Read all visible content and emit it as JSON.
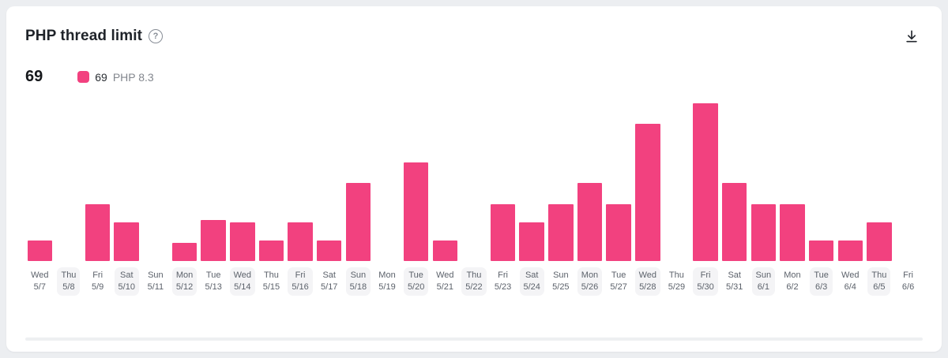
{
  "card": {
    "title": "PHP thread limit",
    "current_value": "69",
    "legend": {
      "value": "69",
      "series_label": "PHP 8.3",
      "color": "#f2417f"
    }
  },
  "icons": {
    "help": "question-mark-circle",
    "download": "download-arrow"
  },
  "chart_data": {
    "type": "bar",
    "title": "PHP thread limit",
    "series_name": "PHP 8.3",
    "bar_color": "#f2417f",
    "ylim": [
      0,
      69
    ],
    "grid": false,
    "weekdays": [
      "Wed",
      "Thu",
      "Fri",
      "Sat",
      "Sun",
      "Mon",
      "Tue",
      "Wed",
      "Thu",
      "Fri",
      "Sat",
      "Sun",
      "Mon",
      "Tue",
      "Wed",
      "Thu",
      "Fri",
      "Sat",
      "Sun",
      "Mon",
      "Tue",
      "Wed",
      "Thu",
      "Fri",
      "Sat",
      "Sun",
      "Mon",
      "Tue",
      "Wed",
      "Thu",
      "Fri"
    ],
    "categories": [
      "5/7",
      "5/8",
      "5/9",
      "5/10",
      "5/11",
      "5/12",
      "5/13",
      "5/14",
      "5/15",
      "5/16",
      "5/17",
      "5/18",
      "5/19",
      "5/20",
      "5/21",
      "5/22",
      "5/23",
      "5/24",
      "5/25",
      "5/26",
      "5/27",
      "5/28",
      "5/29",
      "5/30",
      "5/31",
      "6/1",
      "6/2",
      "6/3",
      "6/4",
      "6/5",
      "6/6"
    ],
    "values": [
      9,
      0,
      25,
      17,
      0,
      8,
      18,
      17,
      9,
      17,
      9,
      34,
      0,
      43,
      9,
      0,
      25,
      17,
      25,
      34,
      25,
      60,
      0,
      69,
      34,
      25,
      25,
      9,
      9,
      17,
      0
    ]
  }
}
